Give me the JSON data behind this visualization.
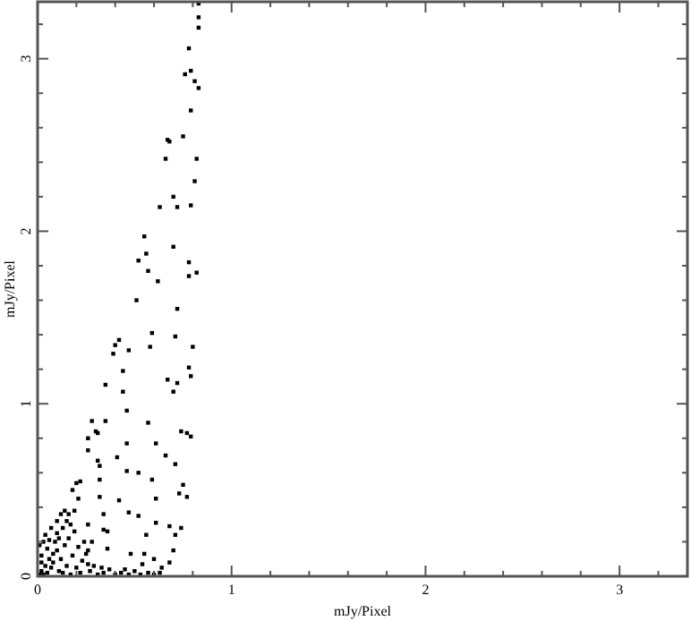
{
  "chart_data": {
    "type": "scatter",
    "xlabel": "mJy/Pixel",
    "ylabel": "mJy/Pixel",
    "xlim": [
      0,
      3.35
    ],
    "ylim": [
      0,
      3.33
    ],
    "xticks": [
      0,
      {
        "value": 0.2,
        "label": null
      },
      {
        "value": 0.4,
        "label": null
      },
      {
        "value": 0.6,
        "label": null
      },
      {
        "value": 0.8,
        "label": null
      },
      1,
      {
        "value": 1.2,
        "label": null
      },
      {
        "value": 1.4,
        "label": null
      },
      {
        "value": 1.6,
        "label": null
      },
      {
        "value": 1.8,
        "label": null
      },
      2,
      {
        "value": 2.2,
        "label": null
      },
      {
        "value": 2.4,
        "label": null
      },
      {
        "value": 2.6,
        "label": null
      },
      {
        "value": 2.8,
        "label": null
      },
      3,
      {
        "value": 3.2,
        "label": null
      }
    ],
    "yticks": [
      0,
      {
        "value": 0.2,
        "label": null
      },
      {
        "value": 0.4,
        "label": null
      },
      {
        "value": 0.6,
        "label": null
      },
      {
        "value": 0.8,
        "label": null
      },
      1,
      {
        "value": 1.2,
        "label": null
      },
      {
        "value": 1.4,
        "label": null
      },
      {
        "value": 1.6,
        "label": null
      },
      {
        "value": 1.8,
        "label": null
      },
      2,
      {
        "value": 2.2,
        "label": null
      },
      {
        "value": 2.4,
        "label": null
      },
      {
        "value": 2.6,
        "label": null
      },
      {
        "value": 2.8,
        "label": null
      },
      3,
      {
        "value": 3.2,
        "label": null
      }
    ],
    "marker": "square",
    "grid": false,
    "series": [
      {
        "color": "#000000",
        "x": [
          0.83,
          0.83,
          0.83,
          0.78,
          0.76,
          0.79,
          0.81,
          0.83,
          0.79,
          0.75,
          0.67,
          0.68,
          0.66,
          0.82,
          0.81,
          0.7,
          0.63,
          0.72,
          0.79,
          0.55,
          0.7,
          0.56,
          0.52,
          0.78,
          0.57,
          0.82,
          0.78,
          0.62,
          0.51,
          0.72,
          0.59,
          0.42,
          0.71,
          0.4,
          0.47,
          0.58,
          0.8,
          0.39,
          0.44,
          0.78,
          0.79,
          0.67,
          0.35,
          0.72,
          0.44,
          0.7,
          0.46,
          0.28,
          0.35,
          0.57,
          0.3,
          0.31,
          0.74,
          0.77,
          0.79,
          0.26,
          0.46,
          0.61,
          0.26,
          0.41,
          0.66,
          0.31,
          0.32,
          0.71,
          0.46,
          0.52,
          0.32,
          0.22,
          0.59,
          0.2,
          0.75,
          0.18,
          0.32,
          0.73,
          0.77,
          0.21,
          0.61,
          0.42,
          0.47,
          0.52,
          0.34,
          0.61,
          0.26,
          0.68,
          0.74,
          0.34,
          0.36,
          0.56,
          0.71,
          0.28,
          0.36,
          0.48,
          0.55,
          0.7,
          0.6,
          0.54,
          0.26,
          0.33,
          0.45,
          0.68,
          0.64,
          0.01,
          0.02,
          0.03,
          0.05,
          0.04,
          0.06,
          0.02,
          0.01,
          0.03,
          0.05,
          0.07,
          0.08,
          0.09,
          0.1,
          0.11,
          0.12,
          0.13,
          0.14,
          0.15,
          0.16,
          0.17,
          0.18,
          0.19,
          0.2,
          0.21,
          0.22,
          0.23,
          0.25,
          0.27,
          0.29,
          0.31,
          0.34,
          0.37,
          0.4,
          0.43,
          0.47,
          0.5,
          0.53,
          0.57,
          0.6,
          0.63,
          0.04,
          0.07,
          0.1,
          0.12,
          0.14,
          0.16,
          0.06,
          0.08,
          0.1,
          0.02,
          0.15,
          0.17,
          0.19,
          0.13,
          0.24,
          0.26,
          0.11
        ],
        "values": [
          3.32,
          3.24,
          3.18,
          3.06,
          2.91,
          2.93,
          2.87,
          2.83,
          2.7,
          2.55,
          2.53,
          2.52,
          2.42,
          2.42,
          2.29,
          2.2,
          2.14,
          2.14,
          2.15,
          1.97,
          1.91,
          1.87,
          1.83,
          1.82,
          1.77,
          1.76,
          1.74,
          1.71,
          1.6,
          1.55,
          1.41,
          1.37,
          1.39,
          1.34,
          1.31,
          1.33,
          1.33,
          1.29,
          1.19,
          1.21,
          1.16,
          1.14,
          1.11,
          1.12,
          1.07,
          1.07,
          0.96,
          0.9,
          0.9,
          0.89,
          0.84,
          0.83,
          0.84,
          0.83,
          0.81,
          0.8,
          0.77,
          0.77,
          0.73,
          0.69,
          0.7,
          0.67,
          0.64,
          0.65,
          0.61,
          0.6,
          0.56,
          0.55,
          0.56,
          0.54,
          0.53,
          0.5,
          0.46,
          0.48,
          0.46,
          0.45,
          0.45,
          0.44,
          0.37,
          0.35,
          0.36,
          0.31,
          0.3,
          0.29,
          0.28,
          0.27,
          0.26,
          0.24,
          0.24,
          0.2,
          0.16,
          0.13,
          0.13,
          0.15,
          0.1,
          0.07,
          0.07,
          0.05,
          0.04,
          0.08,
          0.05,
          0.01,
          0.03,
          0.01,
          0.02,
          0.06,
          0.1,
          0.12,
          0.18,
          0.2,
          0.16,
          0.05,
          0.13,
          0.2,
          0.25,
          0.03,
          0.1,
          0.28,
          0.18,
          0.32,
          0.22,
          0.3,
          0.12,
          0.26,
          0.05,
          0.17,
          0.02,
          0.09,
          0.13,
          0.03,
          0.06,
          0.01,
          0.02,
          0.04,
          0.01,
          0.02,
          0.01,
          0.03,
          0.01,
          0.02,
          0.01,
          0.02,
          0.24,
          0.28,
          0.32,
          0.36,
          0.38,
          0.36,
          0.21,
          0.08,
          0.15,
          0.08,
          0.06,
          0.01,
          0.38,
          0.02,
          0.2,
          0.15,
          0.22
        ]
      }
    ]
  }
}
